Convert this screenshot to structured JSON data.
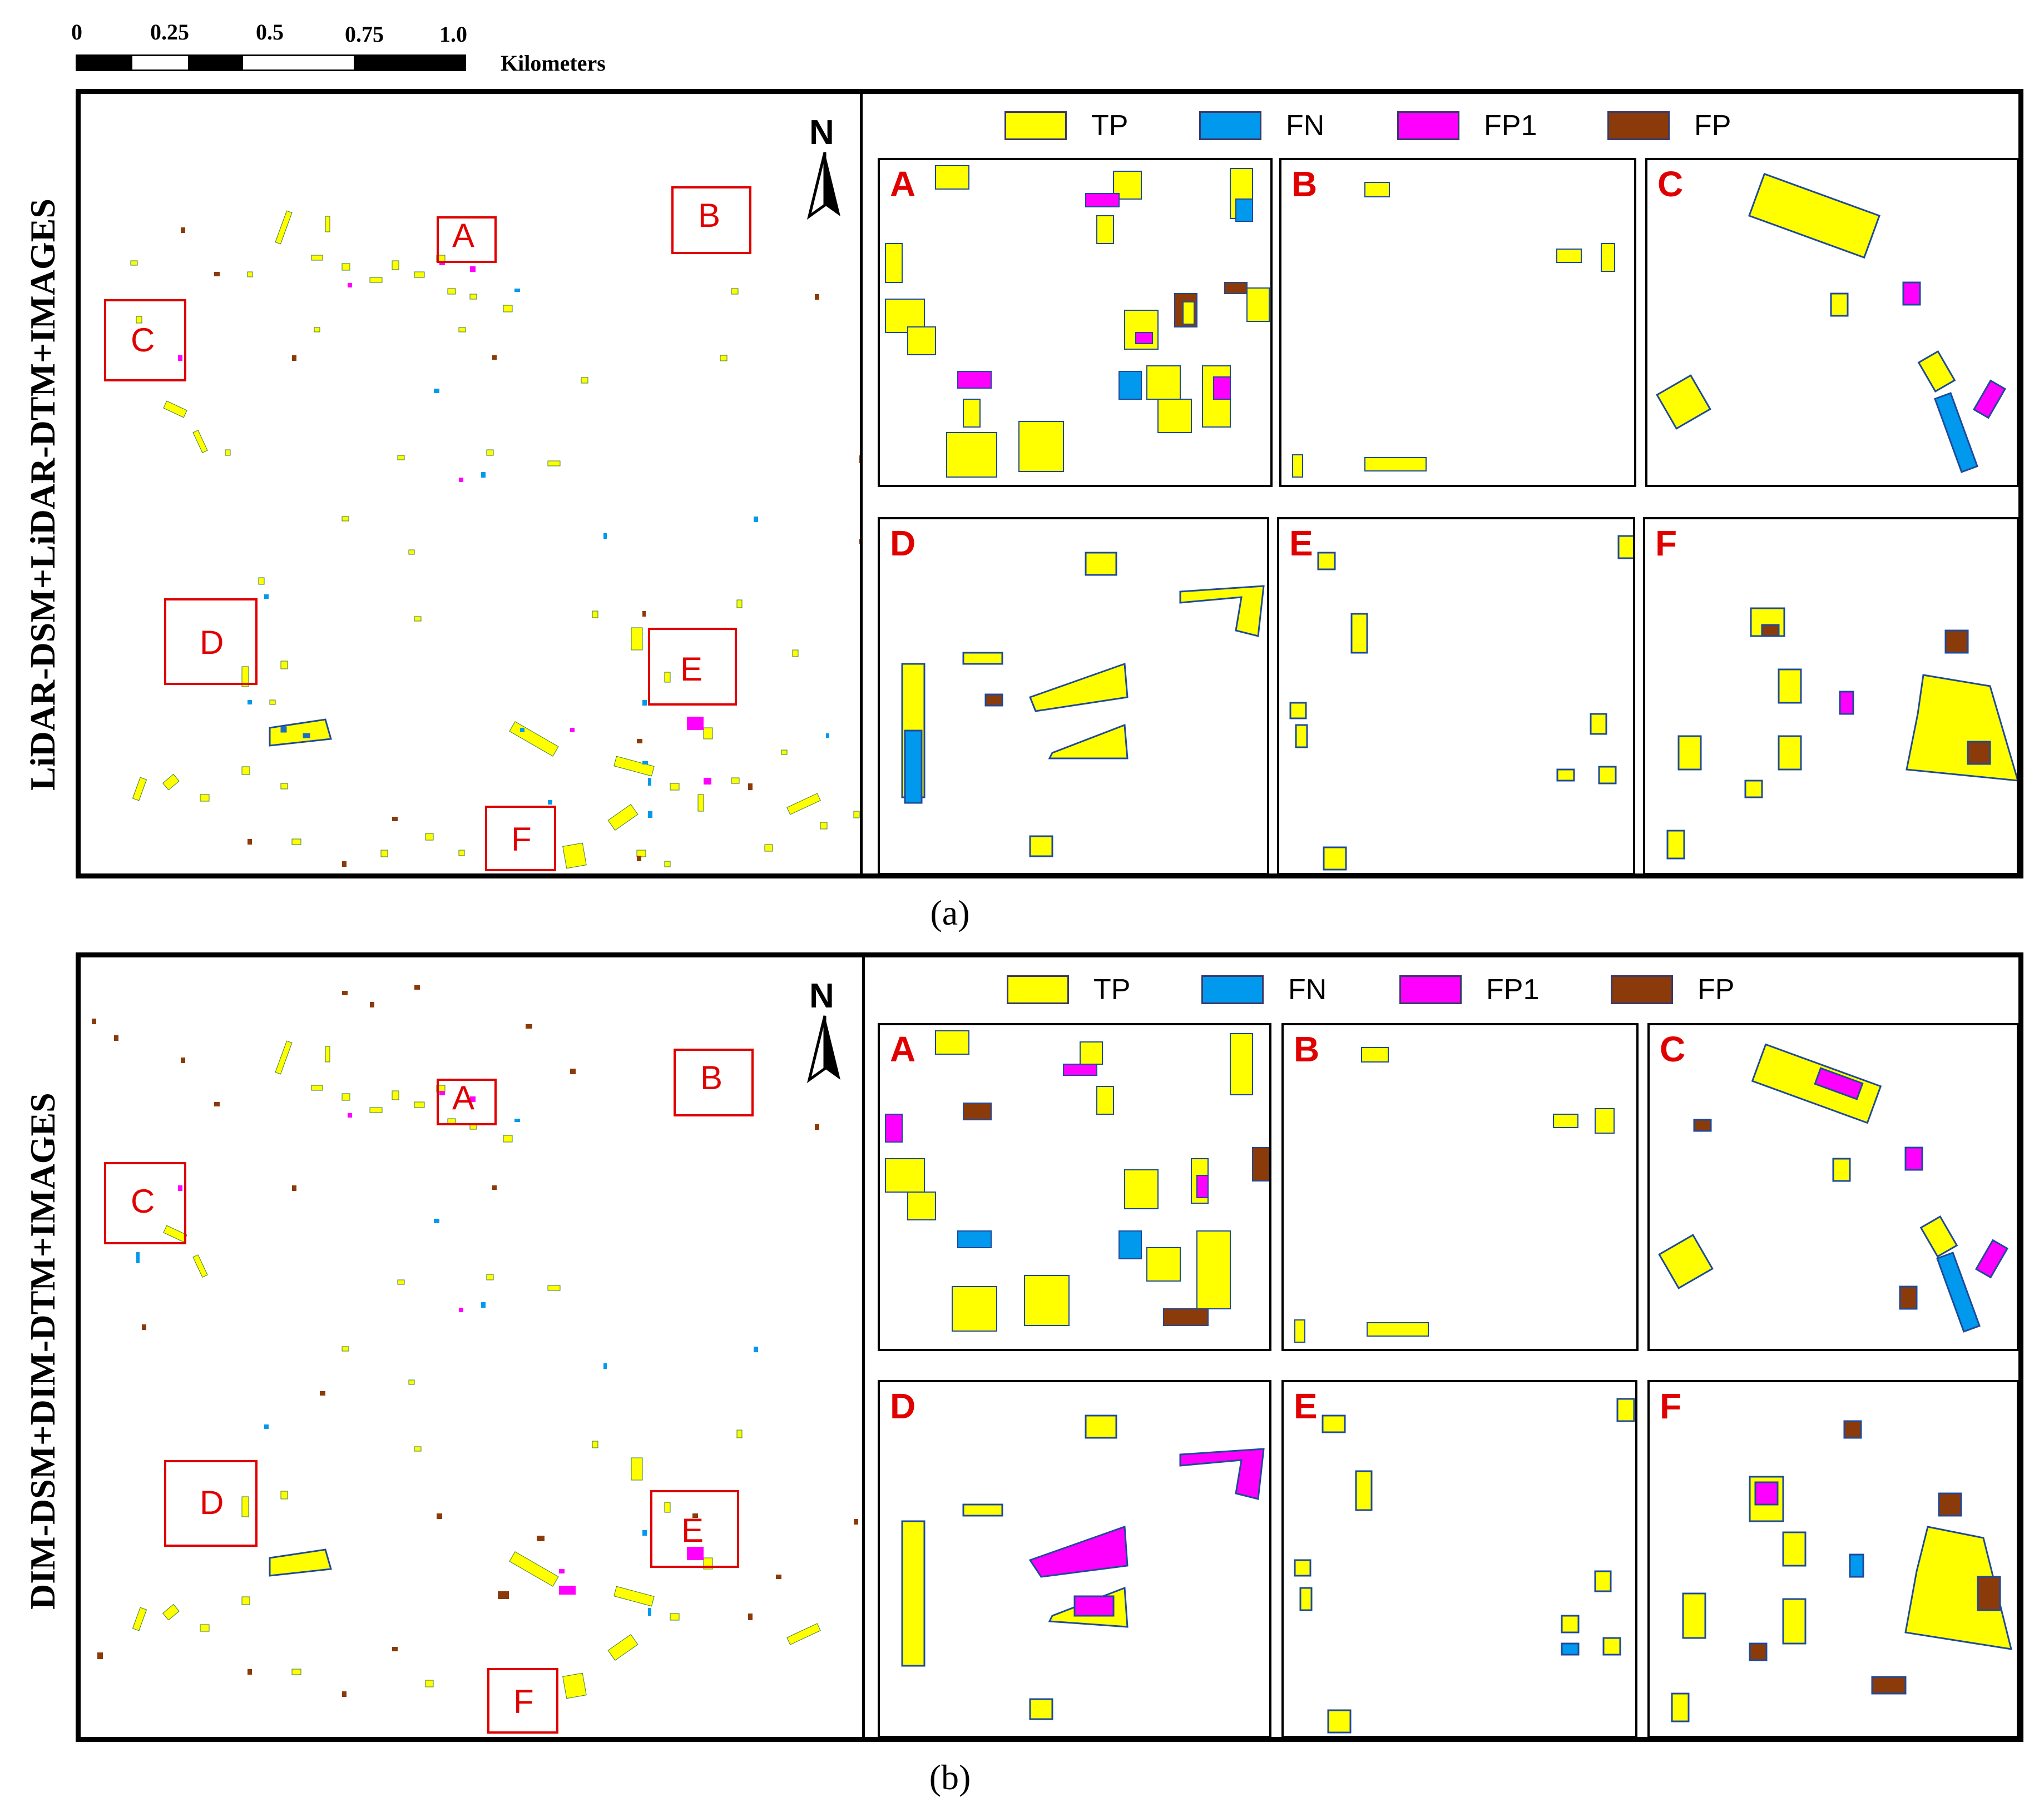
{
  "scale": {
    "ticks": [
      "0",
      "0.25",
      "0.5",
      "0.75",
      "1.0"
    ],
    "unit": "Kilometers"
  },
  "legend": [
    {
      "label": "TP",
      "color": "#ffff00"
    },
    {
      "label": "FN",
      "color": "#0099ee"
    },
    {
      "label": "FP1",
      "color": "#ff00ff"
    },
    {
      "label": "FP",
      "color": "#8b3a0a"
    }
  ],
  "colors": {
    "box": "#e00000",
    "frame": "#000000"
  },
  "north_label": "N",
  "panels": [
    {
      "side_label": "LiDAR-DSM+LiDAR-DTM+IMAGES",
      "caption": "(a)",
      "regions": [
        "A",
        "B",
        "C",
        "D",
        "E",
        "F"
      ]
    },
    {
      "side_label": "DIM-DSM+DIM-DTM+IMAGES",
      "caption": "(b)",
      "regions": [
        "A",
        "B",
        "C",
        "D",
        "E",
        "F"
      ]
    }
  ]
}
